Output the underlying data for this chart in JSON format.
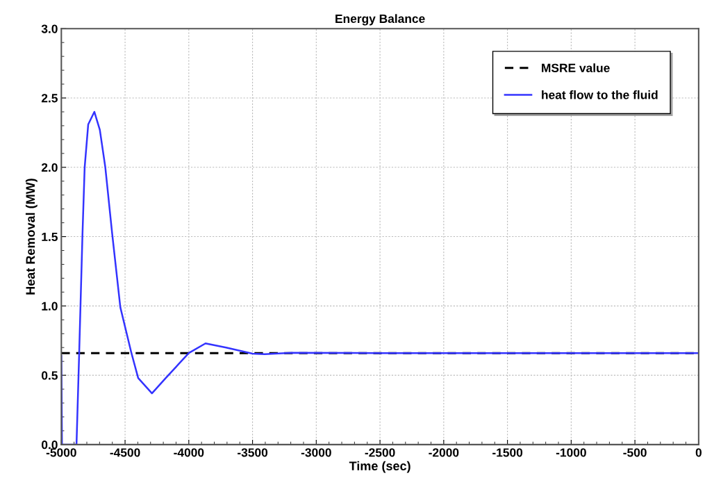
{
  "chart_data": {
    "type": "line",
    "title": "Energy Balance",
    "xlabel": "Time (sec)",
    "ylabel": "Heat Removal (MW)",
    "xlim": [
      -5000,
      0
    ],
    "xticks": [
      -5000,
      -4500,
      -4000,
      -3500,
      -3000,
      -2500,
      -2000,
      -1500,
      -1000,
      -500,
      0
    ],
    "ylim": [
      0,
      3.0
    ],
    "yticks": [
      {
        "value": 0,
        "label": "0.0"
      },
      0.5,
      {
        "value": 1,
        "label": "1.0"
      },
      1.5,
      {
        "value": 2,
        "label": "2.0"
      },
      2.5,
      {
        "value": 3,
        "label": "3.0"
      }
    ],
    "grid": true,
    "legend": "top right",
    "marker": "none",
    "series": [
      {
        "name": "MSRE value",
        "color": "#000000",
        "line_style": "dashed",
        "x": [
          -5000,
          0
        ],
        "values": [
          0.66,
          0.66
        ]
      },
      {
        "name": "heat flow to the fluid",
        "color": "#3333ff",
        "line_style": "solid",
        "x": [
          -5000,
          -4995,
          -4881,
          -4860,
          -4834,
          -4817,
          -4789,
          -4741,
          -4698,
          -4655,
          -4601,
          -4537,
          -4450,
          -4397,
          -4289,
          -4181,
          -4000,
          -3869,
          -3707,
          -3500,
          -3405,
          -3190,
          -2500,
          0
        ],
        "values": [
          0.64,
          0,
          0,
          0.66,
          1.52,
          2.0,
          2.31,
          2.4,
          2.27,
          2.0,
          1.52,
          0.99,
          0.66,
          0.48,
          0.37,
          0.48,
          0.66,
          0.73,
          0.7,
          0.656,
          0.652,
          0.662,
          0.66,
          0.66
        ]
      }
    ]
  }
}
